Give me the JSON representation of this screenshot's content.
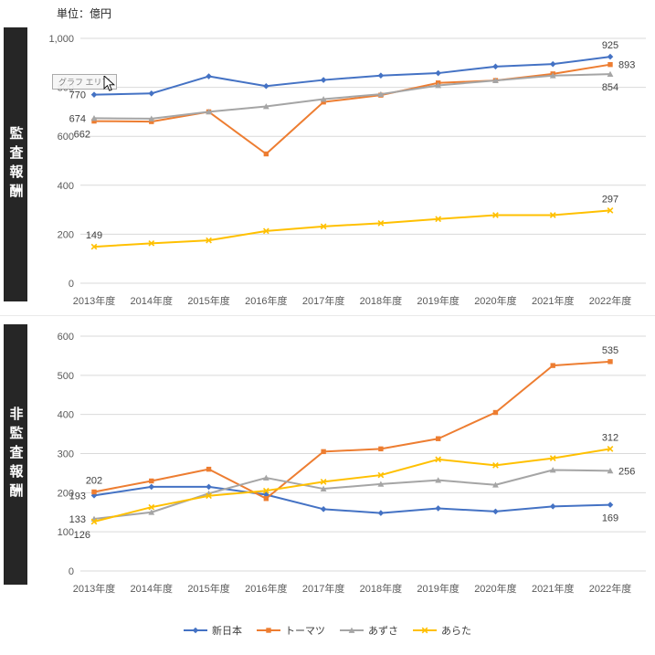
{
  "unit_label": "単位：億円",
  "chart_area_tooltip": "グラフ エリア",
  "side_labels": {
    "audit": "監査報酬",
    "non_audit": "非監査報酬"
  },
  "legend": [
    {
      "name": "新日本",
      "color": "#4472C4",
      "marker": "diamond"
    },
    {
      "name": "トーマツ",
      "color": "#ED7D31",
      "marker": "square"
    },
    {
      "name": "あずさ",
      "color": "#A5A5A5",
      "marker": "triangle"
    },
    {
      "name": "あらた",
      "color": "#FFC000",
      "marker": "x"
    }
  ],
  "chart_data": [
    {
      "type": "line",
      "title": "監査報酬",
      "unit": "億円",
      "grid": true,
      "legend_position": "bottom-shared",
      "categories": [
        "2013年度",
        "2014年度",
        "2015年度",
        "2016年度",
        "2017年度",
        "2018年度",
        "2019年度",
        "2020年度",
        "2021年度",
        "2022年度"
      ],
      "ylim": [
        0,
        1000
      ],
      "ytick_step": 200,
      "series": [
        {
          "name": "新日本",
          "color": "#4472C4",
          "marker": "diamond",
          "values": [
            770,
            775,
            845,
            805,
            830,
            848,
            858,
            885,
            895,
            925
          ]
        },
        {
          "name": "トーマツ",
          "color": "#ED7D31",
          "marker": "square",
          "values": [
            662,
            660,
            700,
            528,
            740,
            768,
            818,
            828,
            855,
            893
          ]
        },
        {
          "name": "あずさ",
          "color": "#A5A5A5",
          "marker": "triangle",
          "values": [
            674,
            672,
            700,
            722,
            752,
            772,
            808,
            828,
            848,
            854
          ]
        },
        {
          "name": "あらた",
          "color": "#FFC000",
          "marker": "x",
          "values": [
            149,
            163,
            175,
            213,
            232,
            245,
            262,
            278,
            278,
            297
          ]
        }
      ],
      "point_labels": [
        {
          "series": 0,
          "index": 0,
          "text": "770",
          "position": "left"
        },
        {
          "series": 2,
          "index": 0,
          "text": "674",
          "position": "left"
        },
        {
          "series": 1,
          "index": 0,
          "text": "662",
          "position": "below-left"
        },
        {
          "series": 3,
          "index": 0,
          "text": "149",
          "position": "above"
        },
        {
          "series": 0,
          "index": 9,
          "text": "925",
          "position": "above"
        },
        {
          "series": 1,
          "index": 9,
          "text": "893",
          "position": "right"
        },
        {
          "series": 2,
          "index": 9,
          "text": "854",
          "position": "below"
        },
        {
          "series": 3,
          "index": 9,
          "text": "297",
          "position": "above"
        }
      ]
    },
    {
      "type": "line",
      "title": "非監査報酬",
      "unit": "億円",
      "grid": true,
      "legend_position": "bottom-shared",
      "categories": [
        "2013年度",
        "2014年度",
        "2015年度",
        "2016年度",
        "2017年度",
        "2018年度",
        "2019年度",
        "2020年度",
        "2021年度",
        "2022年度"
      ],
      "ylim": [
        0,
        600
      ],
      "ytick_step": 100,
      "series": [
        {
          "name": "新日本",
          "color": "#4472C4",
          "marker": "diamond",
          "values": [
            193,
            215,
            215,
            195,
            158,
            148,
            160,
            152,
            165,
            169
          ]
        },
        {
          "name": "トーマツ",
          "color": "#ED7D31",
          "marker": "square",
          "values": [
            202,
            230,
            260,
            185,
            305,
            312,
            338,
            405,
            525,
            535
          ]
        },
        {
          "name": "あずさ",
          "color": "#A5A5A5",
          "marker": "triangle",
          "values": [
            133,
            150,
            198,
            238,
            210,
            222,
            232,
            220,
            258,
            256
          ]
        },
        {
          "name": "あらた",
          "color": "#FFC000",
          "marker": "x",
          "values": [
            126,
            163,
            192,
            205,
            228,
            245,
            285,
            270,
            288,
            312
          ]
        }
      ],
      "point_labels": [
        {
          "series": 1,
          "index": 0,
          "text": "202",
          "position": "above"
        },
        {
          "series": 0,
          "index": 0,
          "text": "193",
          "position": "left"
        },
        {
          "series": 2,
          "index": 0,
          "text": "133",
          "position": "left"
        },
        {
          "series": 3,
          "index": 0,
          "text": "126",
          "position": "below-left"
        },
        {
          "series": 1,
          "index": 9,
          "text": "535",
          "position": "above"
        },
        {
          "series": 3,
          "index": 9,
          "text": "312",
          "position": "above"
        },
        {
          "series": 2,
          "index": 9,
          "text": "256",
          "position": "right"
        },
        {
          "series": 0,
          "index": 9,
          "text": "169",
          "position": "below"
        }
      ]
    }
  ]
}
